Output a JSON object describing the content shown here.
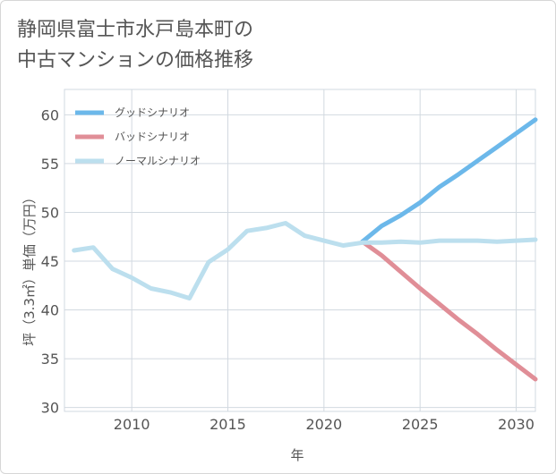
{
  "title_lines": [
    "静岡県富士市水戸島本町の",
    "中古マンションの価格推移"
  ],
  "chart_data": {
    "type": "line",
    "title": "静岡県富士市水戸島本町の中古マンションの価格推移",
    "xlabel": "年",
    "ylabel": "坪（3.3㎡）単価（万円）",
    "xlim": [
      2006.5,
      2031
    ],
    "ylim": [
      29.6,
      62.6
    ],
    "xticks": [
      2010,
      2015,
      2020,
      2025,
      2030
    ],
    "yticks": [
      30,
      35,
      40,
      45,
      50,
      55,
      60
    ],
    "grid": true,
    "legend_position": "top-left",
    "series": [
      {
        "name": "グッドシナリオ",
        "color": "#6cb8ea",
        "x": [
          2022,
          2023,
          2024,
          2025,
          2026,
          2027,
          2028,
          2029,
          2030,
          2031
        ],
        "y": [
          47.0,
          48.6,
          49.7,
          51.0,
          52.6,
          53.9,
          55.3,
          56.7,
          58.1,
          59.5
        ]
      },
      {
        "name": "バッドシナリオ",
        "color": "#e08e97",
        "x": [
          2022,
          2023,
          2024,
          2025,
          2026,
          2027,
          2028,
          2029,
          2030,
          2031
        ],
        "y": [
          47.0,
          45.6,
          43.9,
          42.2,
          40.6,
          39.0,
          37.5,
          35.9,
          34.4,
          32.9
        ]
      },
      {
        "name": "ノーマルシナリオ",
        "color": "#bcdfee",
        "x": [
          2007,
          2008,
          2009,
          2010,
          2011,
          2012,
          2013,
          2014,
          2015,
          2016,
          2017,
          2018,
          2019,
          2020,
          2021,
          2022,
          2023,
          2024,
          2025,
          2026,
          2027,
          2028,
          2029,
          2030,
          2031
        ],
        "y": [
          46.1,
          46.4,
          44.2,
          43.3,
          42.2,
          41.8,
          41.2,
          44.9,
          46.2,
          48.1,
          48.4,
          48.9,
          47.6,
          47.1,
          46.6,
          46.9,
          46.9,
          47.0,
          46.9,
          47.1,
          47.1,
          47.1,
          47.0,
          47.1,
          47.2
        ]
      }
    ]
  }
}
